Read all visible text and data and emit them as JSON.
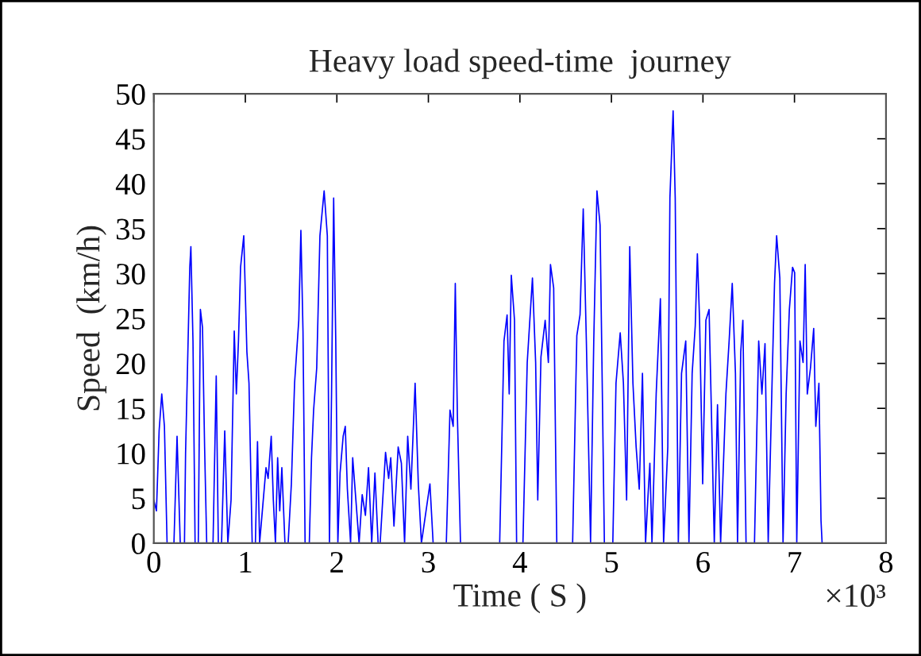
{
  "chart_data": {
    "type": "line",
    "title": "Heavy load speed-time  journey",
    "xlabel": "Time ( S )",
    "ylabel": "Speed  (km/h)",
    "annotations": [
      "×10³"
    ],
    "xlim": [
      0,
      8
    ],
    "ylim": [
      0,
      50
    ],
    "xticks": [
      0,
      1,
      2,
      3,
      4,
      5,
      6,
      7,
      8
    ],
    "yticks": [
      0,
      5,
      10,
      15,
      20,
      25,
      30,
      35,
      40,
      45,
      50
    ],
    "marker": "none",
    "line_style": "solid",
    "series": [
      {
        "color": "#0000ff",
        "x": [
          0,
          0.029,
          0.058,
          0.087,
          0.116,
          0.145,
          0.22,
          0.254,
          0.289,
          0.335,
          0.347,
          0.393,
          0.405,
          0.428,
          0.451,
          0.486,
          0.509,
          0.532,
          0.555,
          0.578,
          0.647,
          0.682,
          0.705,
          0.74,
          0.775,
          0.809,
          0.844,
          0.879,
          0.902,
          0.925,
          0.948,
          0.983,
          1.017,
          1.04,
          1.075,
          1.11,
          1.133,
          1.156,
          1.191,
          1.226,
          1.249,
          1.283,
          1.306,
          1.329,
          1.353,
          1.376,
          1.399,
          1.433,
          1.468,
          1.503,
          1.538,
          1.584,
          1.607,
          1.63,
          1.653,
          1.699,
          1.723,
          1.746,
          1.78,
          1.815,
          1.861,
          1.896,
          1.919,
          1.942,
          1.965,
          1.988,
          2.011,
          2.035,
          2.069,
          2.092,
          2.115,
          2.15,
          2.173,
          2.208,
          2.243,
          2.277,
          2.312,
          2.346,
          2.381,
          2.416,
          2.451,
          2.473,
          2.532,
          2.566,
          2.589,
          2.624,
          2.67,
          2.705,
          2.74,
          2.774,
          2.809,
          2.855,
          2.89,
          2.924,
          3.017,
          3.052,
          3.196,
          3.236,
          3.271,
          3.294,
          3.317,
          3.351,
          3.779,
          3.826,
          3.86,
          3.883,
          3.906,
          3.941,
          3.964,
          4.033,
          4.08,
          4.137,
          4.172,
          4.195,
          4.23,
          4.276,
          4.311,
          4.334,
          4.369,
          4.403,
          4.576,
          4.622,
          4.657,
          4.692,
          4.726,
          4.772,
          4.807,
          4.842,
          4.876,
          4.923,
          5.015,
          5.05,
          5.096,
          5.131,
          5.166,
          5.2,
          5.235,
          5.27,
          5.304,
          5.339,
          5.373,
          5.397,
          5.42,
          5.443,
          5.489,
          5.535,
          5.57,
          5.616,
          5.639,
          5.674,
          5.697,
          5.731,
          5.766,
          5.789,
          5.812,
          5.847,
          5.882,
          5.916,
          5.939,
          5.963,
          5.997,
          6.032,
          6.067,
          6.101,
          6.124,
          6.159,
          6.193,
          6.251,
          6.286,
          6.32,
          6.355,
          6.378,
          6.413,
          6.436,
          6.471,
          6.563,
          6.609,
          6.644,
          6.678,
          6.713,
          6.759,
          6.782,
          6.805,
          6.84,
          6.875,
          6.909,
          6.944,
          6.979,
          7.002,
          7.025,
          7.06,
          7.094,
          7.117,
          7.14,
          7.175,
          7.21,
          7.233,
          7.267,
          7.29,
          7.302
        ],
        "values": [
          4.8,
          3.6,
          12.5,
          16.6,
          13,
          0,
          0,
          11.9,
          0,
          0,
          10,
          30.7,
          33,
          22.5,
          0,
          0,
          26,
          24,
          10.7,
          0,
          0,
          18.6,
          0,
          0,
          12.5,
          0,
          4.8,
          23.6,
          16.6,
          22.5,
          30.7,
          34.2,
          21.3,
          17.8,
          0,
          0,
          11.3,
          0,
          4.2,
          8.4,
          7.2,
          11.9,
          4.8,
          0,
          9.5,
          3.6,
          8.4,
          0,
          0,
          6.6,
          17.8,
          24.8,
          34.8,
          23.6,
          0,
          0,
          9.5,
          14.8,
          19.5,
          34.2,
          39.2,
          34.2,
          0,
          16.6,
          38.4,
          22.5,
          0,
          7.8,
          11.9,
          13,
          6,
          0,
          9.5,
          4.8,
          0,
          5.4,
          3.1,
          8.4,
          0,
          7.8,
          0,
          0,
          10.1,
          7.2,
          9.5,
          1.9,
          10.7,
          8.9,
          0,
          11.9,
          6,
          17.8,
          6.6,
          0,
          6.6,
          0,
          0,
          14.8,
          13,
          28.9,
          14.2,
          0,
          0,
          22.5,
          25.4,
          16.6,
          29.8,
          24.8,
          0,
          0,
          20.1,
          29.5,
          20.1,
          4.8,
          20.7,
          24.8,
          20.1,
          31,
          28.4,
          0,
          0,
          23.1,
          25.4,
          37.2,
          22.5,
          0.1,
          22.5,
          39.2,
          35.4,
          0,
          0,
          17.8,
          23.4,
          17.8,
          4.8,
          33,
          17.8,
          10.7,
          6,
          18.9,
          0,
          4.8,
          8.9,
          0,
          16.6,
          27.2,
          0,
          10.7,
          38.4,
          48.1,
          38.4,
          0,
          18.9,
          20.7,
          22.5,
          0,
          18.9,
          24.2,
          32.2,
          24.8,
          6.6,
          24.8,
          26,
          10.7,
          0,
          15.4,
          0,
          16.6,
          22.5,
          28.9,
          18.9,
          0,
          21.3,
          24.8,
          0,
          0,
          22.5,
          16.6,
          22.2,
          0,
          19.5,
          28.9,
          34.2,
          29.5,
          0,
          16.6,
          26,
          30.7,
          30.1,
          0,
          22.5,
          20.1,
          31,
          16.6,
          19.5,
          23.9,
          13,
          17.8,
          2.5,
          0
        ]
      }
    ]
  }
}
